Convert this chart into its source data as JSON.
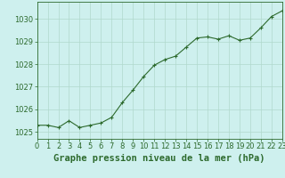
{
  "x": [
    0,
    1,
    2,
    3,
    4,
    5,
    6,
    7,
    8,
    9,
    10,
    11,
    12,
    13,
    14,
    15,
    16,
    17,
    18,
    19,
    20,
    21,
    22,
    23
  ],
  "y": [
    1025.3,
    1025.3,
    1025.2,
    1025.5,
    1025.2,
    1025.3,
    1025.4,
    1025.65,
    1026.3,
    1026.85,
    1027.45,
    1027.95,
    1028.2,
    1028.35,
    1028.75,
    1029.15,
    1029.2,
    1029.1,
    1029.25,
    1029.05,
    1029.15,
    1029.6,
    1030.1,
    1030.35
  ],
  "line_color": "#2d6a2d",
  "marker_color": "#2d6a2d",
  "bg_color": "#cef0ee",
  "grid_color": "#b0d8cc",
  "xlabel": "Graphe pression niveau de la mer (hPa)",
  "xlim": [
    0,
    23
  ],
  "ylim": [
    1024.7,
    1030.75
  ],
  "yticks": [
    1025,
    1026,
    1027,
    1028,
    1029,
    1030
  ],
  "xtick_labels": [
    "0",
    "1",
    "2",
    "3",
    "4",
    "5",
    "6",
    "7",
    "8",
    "9",
    "10",
    "11",
    "12",
    "13",
    "14",
    "15",
    "16",
    "17",
    "18",
    "19",
    "20",
    "21",
    "22",
    "23"
  ],
  "title_fontsize": 7.5,
  "tick_fontsize": 6,
  "marker_size": 2.5,
  "line_width": 0.8
}
